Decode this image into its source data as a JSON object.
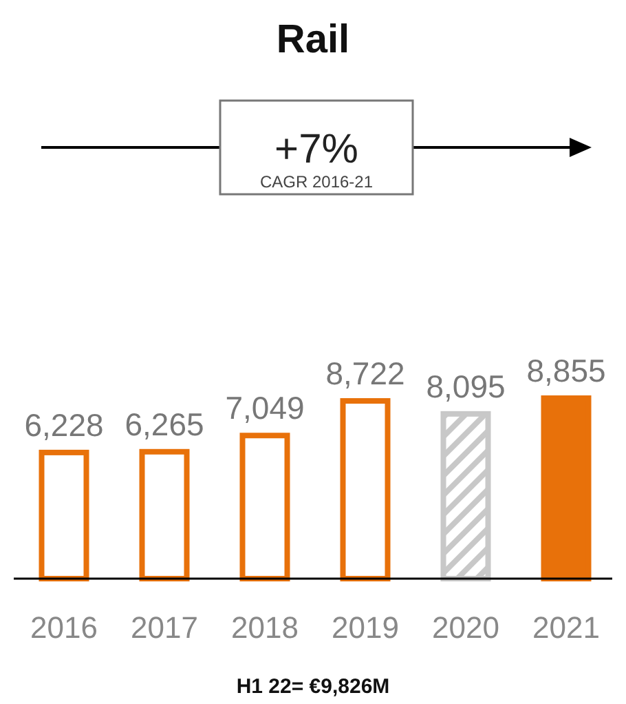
{
  "chart_data": {
    "type": "bar",
    "title": "Rail",
    "categories": [
      "2016",
      "2017",
      "2018",
      "2019",
      "2020",
      "2021"
    ],
    "values": [
      6228,
      6265,
      7049,
      8722,
      8095,
      8855
    ],
    "value_labels": [
      "6,228",
      "6,265",
      "7,049",
      "8,722",
      "8,095",
      "8,855"
    ],
    "color": "#e8710a",
    "colors": [
      "#ffffff",
      "#ffffff",
      "#ffffff",
      "#ffffff",
      "#c8c8c8",
      "#e8710a"
    ],
    "annotations": [
      "+7%",
      "CAGR 2016-21",
      "H1 22= €9,826M"
    ]
  }
}
